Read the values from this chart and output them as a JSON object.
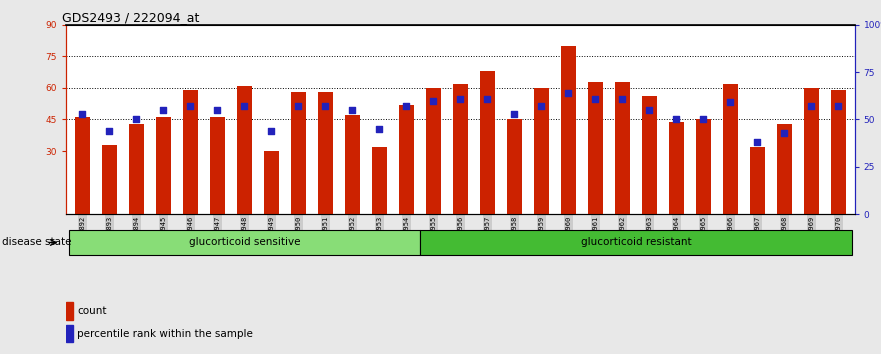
{
  "title": "GDS2493 / 222094_at",
  "samples": [
    "GSM135892",
    "GSM135893",
    "GSM135894",
    "GSM135945",
    "GSM135946",
    "GSM135947",
    "GSM135948",
    "GSM135949",
    "GSM135950",
    "GSM135951",
    "GSM135952",
    "GSM135953",
    "GSM135954",
    "GSM135955",
    "GSM135956",
    "GSM135957",
    "GSM135958",
    "GSM135959",
    "GSM135960",
    "GSM135961",
    "GSM135962",
    "GSM135963",
    "GSM135964",
    "GSM135965",
    "GSM135966",
    "GSM135967",
    "GSM135968",
    "GSM135969",
    "GSM135970"
  ],
  "bar_values": [
    46,
    33,
    43,
    46,
    59,
    46,
    61,
    30,
    58,
    58,
    47,
    32,
    52,
    60,
    62,
    68,
    45,
    60,
    80,
    63,
    63,
    56,
    44,
    45,
    62,
    32,
    43,
    60,
    59
  ],
  "pct_values": [
    53,
    44,
    50,
    55,
    57,
    55,
    57,
    44,
    57,
    57,
    55,
    45,
    57,
    60,
    61,
    61,
    53,
    57,
    64,
    61,
    61,
    55,
    50,
    50,
    59,
    38,
    43,
    57,
    57
  ],
  "group1_label": "glucorticoid sensitive",
  "group2_label": "glucorticoid resistant",
  "group1_count": 13,
  "group2_count": 16,
  "disease_state_label": "disease state",
  "ylim_left": [
    0,
    90
  ],
  "ylim_right": [
    0,
    100
  ],
  "yticks_left": [
    30,
    45,
    60,
    75,
    90
  ],
  "yticks_right": [
    0,
    25,
    50,
    75,
    100
  ],
  "bar_color": "#cc2200",
  "pct_color": "#2222bb",
  "bg_color": "#e8e8e8",
  "plot_bg": "#ffffff",
  "group1_color": "#88dd77",
  "group2_color": "#44bb33",
  "legend_count_label": "count",
  "legend_pct_label": "percentile rank within the sample",
  "grid_values": [
    45,
    60,
    75
  ],
  "title_fontsize": 9,
  "tick_fontsize": 6.5,
  "label_fontsize": 7.5,
  "xticklabel_bg": "#cccccc"
}
